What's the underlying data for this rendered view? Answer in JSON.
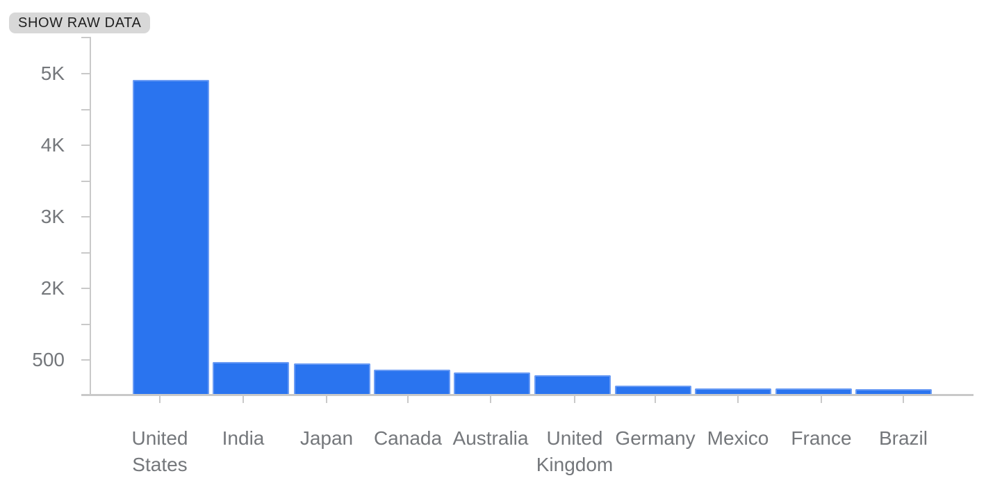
{
  "controls": {
    "show_raw_data_label": "SHOW RAW DATA"
  },
  "colors": {
    "bar_fill": "#2A74EF",
    "bar_edge": "#6B9CF4",
    "axis_line": "#C9C9C9",
    "axis_label_text": "#74777B",
    "chip_background": "#D8D8D8",
    "chip_text": "#1F1F1F",
    "background": "#FFFFFF"
  },
  "chart_data": {
    "type": "bar",
    "title": "",
    "xlabel": "",
    "ylabel": "",
    "grid": false,
    "legend": false,
    "categories": [
      "United States",
      "India",
      "Japan",
      "Canada",
      "Australia",
      "United Kingdom",
      "Germany",
      "Mexico",
      "France",
      "Brazil"
    ],
    "values": [
      4900,
      460,
      440,
      350,
      310,
      270,
      125,
      85,
      85,
      75
    ],
    "y_axis": {
      "tick_labels": [
        "5K",
        "4K",
        "3K",
        "2K",
        "500"
      ],
      "tick_values": [
        5000,
        4000,
        3000,
        2000,
        500
      ],
      "minor_ticks_between_majors": true,
      "note": "major ticks equally spaced; bottom segment spans 0-500"
    },
    "ylim": [
      0,
      5500
    ]
  }
}
